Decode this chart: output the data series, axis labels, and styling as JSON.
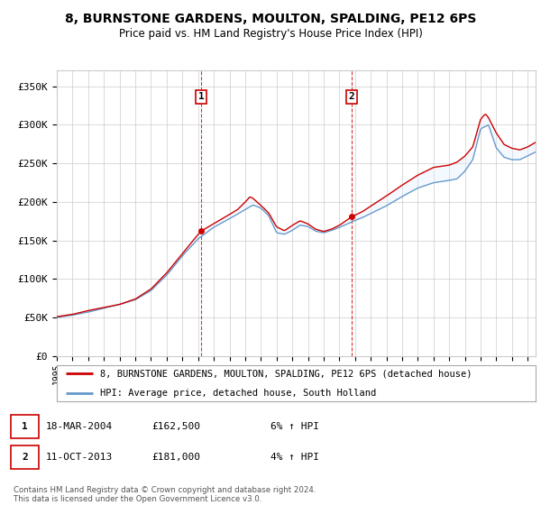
{
  "title1": "8, BURNSTONE GARDENS, MOULTON, SPALDING, PE12 6PS",
  "title2": "Price paid vs. HM Land Registry's House Price Index (HPI)",
  "ylabel_ticks": [
    "£0",
    "£50K",
    "£100K",
    "£150K",
    "£200K",
    "£250K",
    "£300K",
    "£350K"
  ],
  "ytick_values": [
    0,
    50000,
    100000,
    150000,
    200000,
    250000,
    300000,
    350000
  ],
  "ylim": [
    0,
    370000
  ],
  "xlim_start": 1995.0,
  "xlim_end": 2025.5,
  "purchase1_date": 2004.21,
  "purchase1_price": 162500,
  "purchase2_date": 2013.78,
  "purchase2_price": 181000,
  "legend_line1": "8, BURNSTONE GARDENS, MOULTON, SPALDING, PE12 6PS (detached house)",
  "legend_line2": "HPI: Average price, detached house, South Holland",
  "annotation1_date": "18-MAR-2004",
  "annotation1_price": "£162,500",
  "annotation1_hpi": "6% ↑ HPI",
  "annotation2_date": "11-OCT-2013",
  "annotation2_price": "£181,000",
  "annotation2_hpi": "4% ↑ HPI",
  "footer": "Contains HM Land Registry data © Crown copyright and database right 2024.\nThis data is licensed under the Open Government Licence v3.0.",
  "color_red": "#cc0000",
  "color_blue": "#6699cc",
  "color_shading": "#ddeeff",
  "bg_color": "#ffffff",
  "grid_color": "#cccccc"
}
